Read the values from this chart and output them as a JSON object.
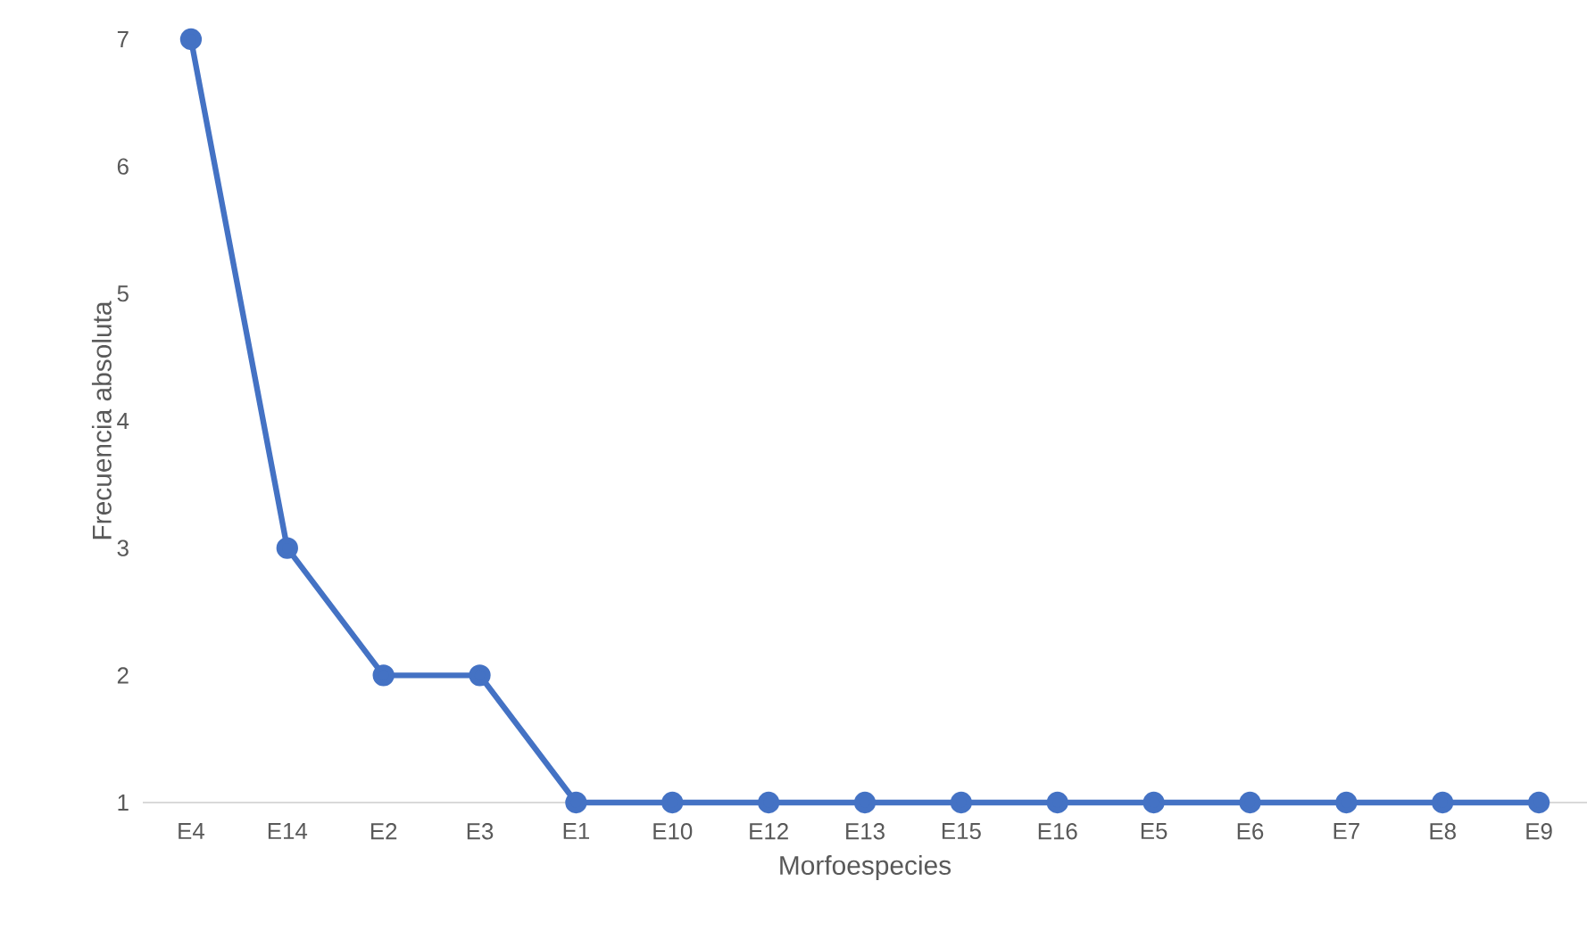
{
  "chart_data": {
    "type": "line",
    "xlabel": "Morfoespecies",
    "ylabel": "Frecuencia absoluta",
    "categories": [
      "E4",
      "E14",
      "E2",
      "E3",
      "E1",
      "E10",
      "E12",
      "E13",
      "E15",
      "E16",
      "E5",
      "E6",
      "E7",
      "E8",
      "E9"
    ],
    "series": [
      {
        "color": "#4472c4",
        "values": [
          7,
          3,
          2,
          2,
          1,
          1,
          1,
          1,
          1,
          1,
          1,
          1,
          1,
          1,
          1
        ]
      }
    ],
    "ylim": [
      1,
      7
    ],
    "yticks": [
      1,
      2,
      3,
      4,
      5,
      6,
      7
    ],
    "grid": false,
    "marker": "circle",
    "line_style": "solid"
  }
}
